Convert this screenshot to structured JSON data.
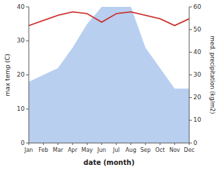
{
  "chart_data": {
    "type": "line",
    "xlabel": "date (month)",
    "ylabel": "max temp (C)",
    "y2label": "med. precipitation (kg/m2)",
    "categories": [
      "Jan",
      "Feb",
      "Mar",
      "Apr",
      "May",
      "Jun",
      "Jul",
      "Aug",
      "Sep",
      "Oct",
      "Nov",
      "Dec"
    ],
    "series": [
      {
        "type": "area",
        "color": "#b8cff0",
        "values": [
          18,
          20,
          22,
          28,
          35,
          40,
          40,
          40,
          28,
          22,
          16,
          16
        ]
      },
      {
        "type": "line",
        "color": "#cc3333",
        "values": [
          34.5,
          36.0,
          37.5,
          38.5,
          38.0,
          35.5,
          38.0,
          38.5,
          37.5,
          36.5,
          34.5,
          36.5
        ]
      }
    ],
    "ylim": [
      0,
      40
    ],
    "yticks": [
      0,
      10,
      20,
      30,
      40
    ],
    "y2lim": [
      0,
      60
    ],
    "y2ticks": [
      0,
      10,
      20,
      30,
      40,
      50,
      60
    ],
    "grid": false
  }
}
